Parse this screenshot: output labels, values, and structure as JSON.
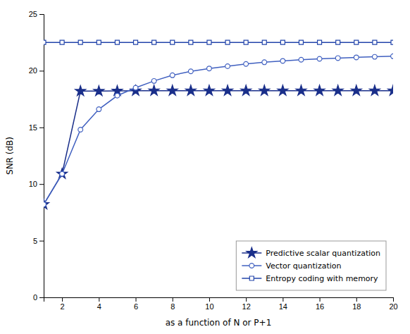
{
  "chart_data": {
    "type": "line",
    "xlabel": "as a function of N or P+1",
    "ylabel": "SNR (dB)",
    "xlim": [
      1,
      20
    ],
    "ylim": [
      0,
      25
    ],
    "xticks": [
      2,
      4,
      6,
      8,
      10,
      12,
      14,
      16,
      18,
      20
    ],
    "yticks": [
      0,
      5,
      10,
      15,
      20,
      25
    ],
    "grid": false,
    "legend": "lower right",
    "x": [
      1,
      2,
      3,
      4,
      5,
      6,
      7,
      8,
      9,
      10,
      11,
      12,
      13,
      14,
      15,
      16,
      17,
      18,
      19,
      20
    ],
    "series": [
      {
        "name": "Predictive scalar quantization",
        "color": "#1a2f8a",
        "marker": "star",
        "values": [
          8.2,
          10.9,
          18.2,
          18.2,
          18.22,
          18.23,
          18.24,
          18.24,
          18.24,
          18.24,
          18.24,
          18.24,
          18.24,
          18.24,
          18.24,
          18.24,
          18.24,
          18.24,
          18.24,
          18.24
        ]
      },
      {
        "name": "Vector quantization",
        "color": "#4060c0",
        "marker": "circle",
        "values": [
          8.2,
          10.9,
          14.8,
          16.6,
          17.8,
          18.5,
          19.1,
          19.6,
          19.95,
          20.2,
          20.4,
          20.6,
          20.75,
          20.87,
          20.97,
          21.05,
          21.12,
          21.18,
          21.23,
          21.28
        ]
      },
      {
        "name": "Entropy coding with memory",
        "color": "#2244aa",
        "marker": "square",
        "values": [
          22.5,
          22.5,
          22.5,
          22.5,
          22.5,
          22.5,
          22.5,
          22.5,
          22.5,
          22.5,
          22.5,
          22.5,
          22.5,
          22.5,
          22.5,
          22.5,
          22.5,
          22.5,
          22.5,
          22.5
        ]
      }
    ]
  }
}
